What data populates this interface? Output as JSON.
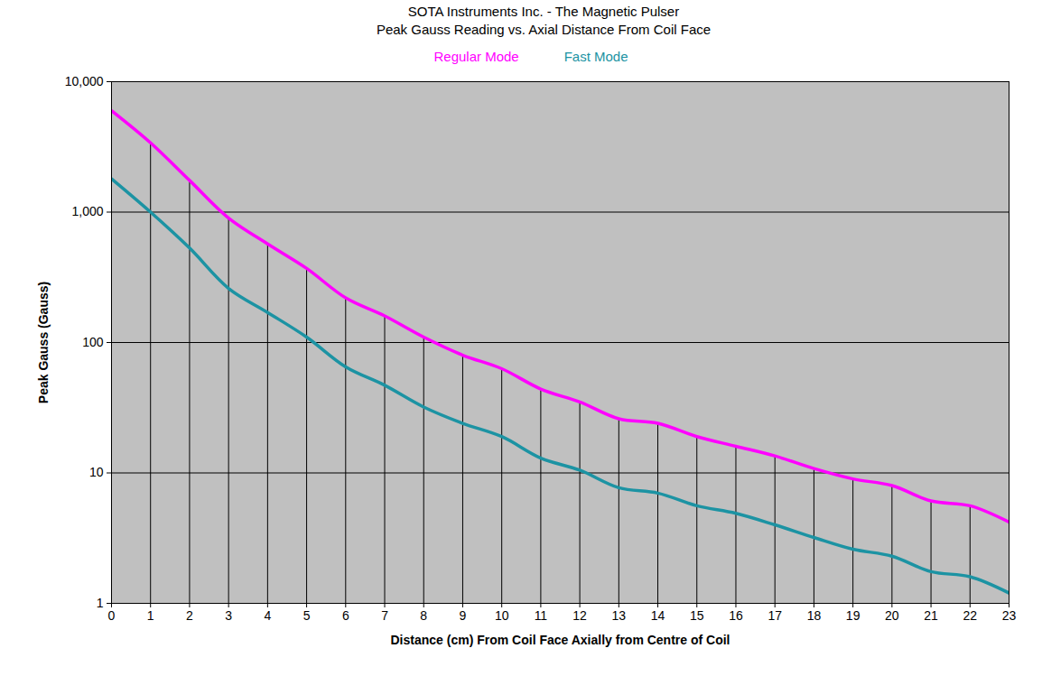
{
  "chart_data": {
    "type": "line",
    "title": "SOTA Instruments Inc. - The Magnetic Pulser",
    "subtitle": "Peak Gauss Reading vs. Axial Distance From Coil Face",
    "x_label": "Distance (cm) From Coil Face Axially from Centre of Coil",
    "y_label": "Peak Gauss (Gauss)",
    "x": [
      0,
      1,
      2,
      3,
      4,
      5,
      6,
      7,
      8,
      9,
      10,
      11,
      12,
      13,
      14,
      15,
      16,
      17,
      18,
      19,
      20,
      21,
      22,
      23
    ],
    "series": [
      {
        "name": "Regular Mode",
        "color": "#ff00ff",
        "values": [
          6000,
          3400,
          1750,
          900,
          570,
          370,
          220,
          160,
          110,
          80,
          63,
          44,
          35,
          26,
          24,
          19,
          16,
          13.5,
          10.8,
          9,
          8,
          6.1,
          5.6,
          4.2
        ]
      },
      {
        "name": "Fast Mode",
        "color": "#1c93a3",
        "values": [
          1800,
          1000,
          530,
          260,
          170,
          110,
          65,
          47,
          32,
          24,
          19,
          13,
          10.5,
          7.7,
          7,
          5.6,
          4.9,
          4,
          3.2,
          2.6,
          2.3,
          1.75,
          1.6,
          1.2
        ]
      }
    ],
    "xlim": [
      0,
      23
    ],
    "xticks": [
      0,
      1,
      2,
      3,
      4,
      5,
      6,
      7,
      8,
      9,
      10,
      11,
      12,
      13,
      14,
      15,
      16,
      17,
      18,
      19,
      20,
      21,
      22,
      23
    ],
    "ylim": [
      1,
      10000
    ],
    "yticks": [
      1,
      10,
      100,
      {
        "value": 1000,
        "label": "1,000"
      },
      {
        "value": 10000,
        "label": "10,000"
      }
    ],
    "log": "y",
    "grid": true,
    "legend": "top"
  }
}
